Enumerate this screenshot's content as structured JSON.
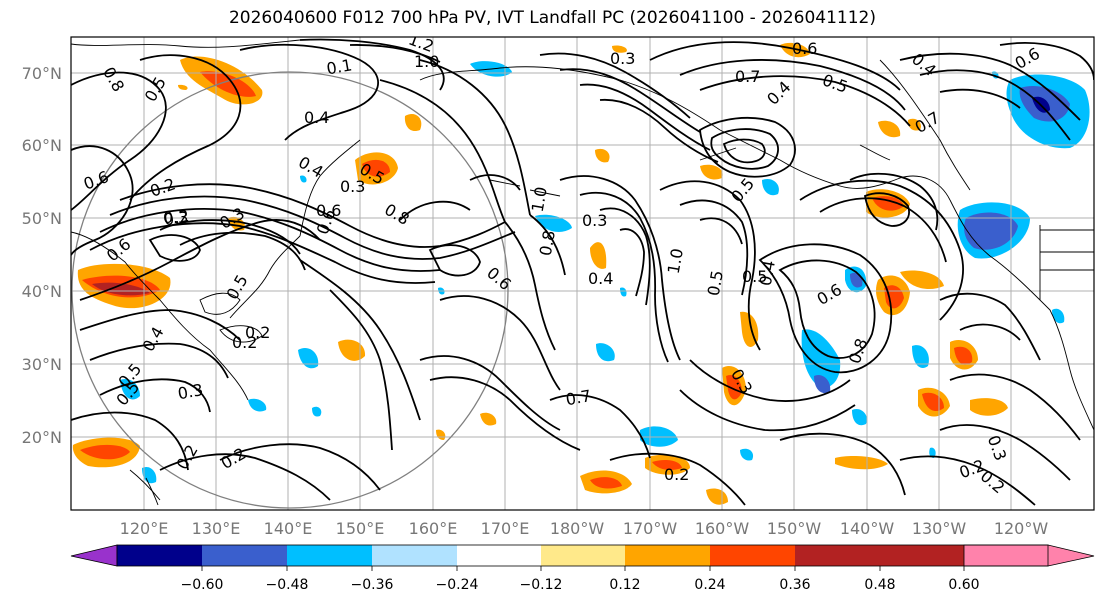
{
  "title": "2026040600 F012 700 hPa PV, IVT Landfall PC (2026041100 - 2026041112)",
  "map": {
    "lat_labels": [
      "70°N",
      "60°N",
      "50°N",
      "40°N",
      "30°N",
      "20°N"
    ],
    "lon_labels": [
      "120°E",
      "130°E",
      "140°E",
      "150°E",
      "160°E",
      "170°E",
      "180°W",
      "170°W",
      "160°W",
      "150°W",
      "140°W",
      "130°W",
      "120°W"
    ],
    "contour_labels": [
      "1.2",
      "1.0",
      "0.8",
      "0.5",
      "0.4",
      "0.3",
      "0.2",
      "0.6",
      "0.7",
      "0.3",
      "0.6",
      "0.5",
      "0.4",
      "0.7",
      "0.6",
      "0.5",
      "0.4",
      "0.2",
      "0.3",
      "0.5",
      "0.4",
      "0.6",
      "0.8",
      "0.3",
      "0.6",
      "0.1",
      "0.6",
      "0.2",
      "0.3",
      "1.0",
      "0.5",
      "0.4",
      "0.8",
      "1.0",
      "0.5",
      "0.4",
      "0.5",
      "0.4",
      "0.6",
      "0.8",
      "0.7",
      "0.5",
      "0.3",
      "0.2",
      "0.2",
      "0.2",
      "0.2",
      "0.3",
      "0.2",
      "0.5",
      "0.6",
      "0.3",
      "0.2"
    ]
  },
  "colorbar": {
    "ticks": [
      "−0.60",
      "−0.48",
      "−0.36",
      "−0.24",
      "−0.12",
      "0.12",
      "0.24",
      "0.36",
      "0.48",
      "0.60"
    ],
    "colors": [
      "#9932cc",
      "#00008b",
      "#3a5fcd",
      "#00bfff",
      "#b0e2ff",
      "#ffffff",
      "#ffe98a",
      "#ffa500",
      "#ff4500",
      "#b22222",
      "#ff82ab"
    ]
  }
}
